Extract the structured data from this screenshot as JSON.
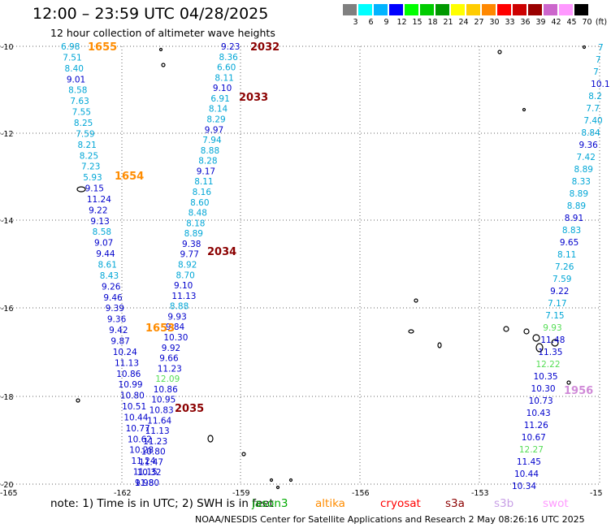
{
  "title": "12:00 – 23:59 UTC 04/28/2025",
  "subtitle": "12 hour collection of altimeter wave heights",
  "legend": {
    "unit": "(ft)",
    "bins": [
      {
        "label": "3",
        "color": "#808080"
      },
      {
        "label": "6",
        "color": "#00ffff"
      },
      {
        "label": "9",
        "color": "#00b4ff"
      },
      {
        "label": "12",
        "color": "#0000ff"
      },
      {
        "label": "15",
        "color": "#00ff00"
      },
      {
        "label": "18",
        "color": "#00cc00"
      },
      {
        "label": "21",
        "color": "#009900"
      },
      {
        "label": "24",
        "color": "#ffff00"
      },
      {
        "label": "27",
        "color": "#ffcc00"
      },
      {
        "label": "30",
        "color": "#ff8800"
      },
      {
        "label": "33",
        "color": "#ff0000"
      },
      {
        "label": "36",
        "color": "#cc0000"
      },
      {
        "label": "39",
        "color": "#990000"
      },
      {
        "label": "42",
        "color": "#cc66cc"
      },
      {
        "label": "45",
        "color": "#ff99ff"
      },
      {
        "label": "70",
        "color": "#000000"
      }
    ]
  },
  "axes": {
    "lat_labels": [
      "-10",
      "-12",
      "-14",
      "-16",
      "-18",
      "-20"
    ],
    "lon_labels": [
      "-165",
      "-162",
      "-159",
      "-156",
      "-153",
      "-15"
    ]
  },
  "track_colors": {
    "cyan": "#00a6d6",
    "blue": "#0000cc",
    "green": "#55dd55"
  },
  "time_labels": [
    {
      "text": "1655",
      "color": "#ff8c00"
    },
    {
      "text": "1654",
      "color": "#ff8c00"
    },
    {
      "text": "1653",
      "color": "#ff8c00"
    },
    {
      "text": "2032",
      "color": "#8b0000"
    },
    {
      "text": "2033",
      "color": "#8b0000"
    },
    {
      "text": "2034",
      "color": "#8b0000"
    },
    {
      "text": "2035",
      "color": "#8b0000"
    },
    {
      "text": "1956",
      "color": "#d08ad8"
    }
  ],
  "tracks": [
    {
      "name": "track-1655",
      "points": [
        {
          "v": "6.98",
          "c": "cyan"
        },
        {
          "v": "7.51",
          "c": "cyan"
        },
        {
          "v": "8.40",
          "c": "cyan"
        },
        {
          "v": "9.01",
          "c": "blue"
        },
        {
          "v": "8.58",
          "c": "cyan"
        },
        {
          "v": "7.63",
          "c": "cyan"
        },
        {
          "v": "7.55",
          "c": "cyan"
        },
        {
          "v": "8.25",
          "c": "cyan"
        },
        {
          "v": "7.59",
          "c": "cyan"
        },
        {
          "v": "8.21",
          "c": "cyan"
        },
        {
          "v": "8.25",
          "c": "cyan"
        },
        {
          "v": "7.23",
          "c": "cyan"
        },
        {
          "v": "5.93",
          "c": "cyan"
        },
        {
          "v": "9.15",
          "c": "blue"
        },
        {
          "v": "11.24",
          "c": "blue"
        },
        {
          "v": "9.22",
          "c": "blue"
        },
        {
          "v": "9.13",
          "c": "blue"
        },
        {
          "v": "8.58",
          "c": "cyan"
        },
        {
          "v": "9.07",
          "c": "blue"
        },
        {
          "v": "9.44",
          "c": "blue"
        },
        {
          "v": "8.61",
          "c": "cyan"
        },
        {
          "v": "8.43",
          "c": "cyan"
        },
        {
          "v": "9.26",
          "c": "blue"
        },
        {
          "v": "9.46",
          "c": "blue"
        },
        {
          "v": "9.39",
          "c": "blue"
        },
        {
          "v": "9.36",
          "c": "blue"
        },
        {
          "v": "9.42",
          "c": "blue"
        },
        {
          "v": "9.87",
          "c": "blue"
        },
        {
          "v": "10.24",
          "c": "blue"
        },
        {
          "v": "11.13",
          "c": "blue"
        },
        {
          "v": "10.86",
          "c": "blue"
        },
        {
          "v": "10.99",
          "c": "blue"
        },
        {
          "v": "10.80",
          "c": "blue"
        },
        {
          "v": "10.51",
          "c": "blue"
        },
        {
          "v": "10.44",
          "c": "blue"
        },
        {
          "v": "10.77",
          "c": "blue"
        },
        {
          "v": "10.62",
          "c": "blue"
        },
        {
          "v": "10.28",
          "c": "blue"
        },
        {
          "v": "11.24",
          "c": "blue"
        },
        {
          "v": "11.15",
          "c": "blue"
        },
        {
          "v": "9.98",
          "c": "blue"
        }
      ]
    },
    {
      "name": "track-2032",
      "points": [
        {
          "v": "9.23",
          "c": "blue"
        },
        {
          "v": "8.36",
          "c": "cyan"
        },
        {
          "v": "6.60",
          "c": "cyan"
        },
        {
          "v": "8.11",
          "c": "cyan"
        },
        {
          "v": "9.10",
          "c": "blue"
        },
        {
          "v": "6.91",
          "c": "cyan"
        },
        {
          "v": "8.14",
          "c": "cyan"
        },
        {
          "v": "8.29",
          "c": "cyan"
        },
        {
          "v": "9.97",
          "c": "blue"
        },
        {
          "v": "7.94",
          "c": "cyan"
        },
        {
          "v": "8.88",
          "c": "cyan"
        },
        {
          "v": "8.28",
          "c": "cyan"
        },
        {
          "v": "9.17",
          "c": "blue"
        },
        {
          "v": "8.11",
          "c": "cyan"
        },
        {
          "v": "8.16",
          "c": "cyan"
        },
        {
          "v": "8.60",
          "c": "cyan"
        },
        {
          "v": "8.48",
          "c": "cyan"
        },
        {
          "v": "8.18",
          "c": "cyan"
        },
        {
          "v": "8.89",
          "c": "cyan"
        },
        {
          "v": "9.38",
          "c": "blue"
        },
        {
          "v": "9.77",
          "c": "blue"
        },
        {
          "v": "8.92",
          "c": "cyan"
        },
        {
          "v": "8.70",
          "c": "cyan"
        },
        {
          "v": "9.10",
          "c": "blue"
        },
        {
          "v": "11.13",
          "c": "blue"
        },
        {
          "v": "8.88",
          "c": "cyan"
        },
        {
          "v": "9.93",
          "c": "blue"
        },
        {
          "v": "9.84",
          "c": "blue"
        },
        {
          "v": "10.30",
          "c": "blue"
        },
        {
          "v": "9.92",
          "c": "blue"
        },
        {
          "v": "9.66",
          "c": "blue"
        },
        {
          "v": "11.23",
          "c": "blue"
        },
        {
          "v": "12.09",
          "c": "green"
        },
        {
          "v": "10.86",
          "c": "blue"
        },
        {
          "v": "10.95",
          "c": "blue"
        },
        {
          "v": "10.83",
          "c": "blue"
        },
        {
          "v": "11.64",
          "c": "blue"
        },
        {
          "v": "11.13",
          "c": "blue"
        },
        {
          "v": "11.23",
          "c": "blue"
        },
        {
          "v": "10.80",
          "c": "blue"
        },
        {
          "v": "11.47",
          "c": "blue"
        },
        {
          "v": "10.32",
          "c": "blue"
        },
        {
          "v": "11.80",
          "c": "blue"
        }
      ]
    },
    {
      "name": "track-1956",
      "points": [
        {
          "v": "7",
          "c": "cyan"
        },
        {
          "v": "7",
          "c": "cyan"
        },
        {
          "v": "7",
          "c": "cyan"
        },
        {
          "v": "10.1",
          "c": "blue"
        },
        {
          "v": "8.2",
          "c": "cyan"
        },
        {
          "v": "7.7",
          "c": "cyan"
        },
        {
          "v": "7.40",
          "c": "cyan"
        },
        {
          "v": "8.84",
          "c": "cyan"
        },
        {
          "v": "9.36",
          "c": "blue"
        },
        {
          "v": "7.42",
          "c": "cyan"
        },
        {
          "v": "8.89",
          "c": "cyan"
        },
        {
          "v": "8.33",
          "c": "cyan"
        },
        {
          "v": "8.89",
          "c": "cyan"
        },
        {
          "v": "8.89",
          "c": "cyan"
        },
        {
          "v": "8.91",
          "c": "blue"
        },
        {
          "v": "8.83",
          "c": "cyan"
        },
        {
          "v": "9.65",
          "c": "blue"
        },
        {
          "v": "8.11",
          "c": "cyan"
        },
        {
          "v": "7.26",
          "c": "cyan"
        },
        {
          "v": "7.59",
          "c": "cyan"
        },
        {
          "v": "9.22",
          "c": "blue"
        },
        {
          "v": "7.17",
          "c": "cyan"
        },
        {
          "v": "7.15",
          "c": "cyan"
        },
        {
          "v": "9.93",
          "c": "green"
        },
        {
          "v": "11.48",
          "c": "blue"
        },
        {
          "v": "11.35",
          "c": "blue"
        },
        {
          "v": "12.22",
          "c": "green"
        },
        {
          "v": "10.35",
          "c": "blue"
        },
        {
          "v": "10.30",
          "c": "blue"
        },
        {
          "v": "10.73",
          "c": "blue"
        },
        {
          "v": "10.43",
          "c": "blue"
        },
        {
          "v": "11.26",
          "c": "blue"
        },
        {
          "v": "10.67",
          "c": "blue"
        },
        {
          "v": "12.27",
          "c": "green"
        },
        {
          "v": "11.45",
          "c": "blue"
        },
        {
          "v": "10.44",
          "c": "blue"
        },
        {
          "v": "10.34",
          "c": "blue"
        }
      ]
    }
  ],
  "footer": {
    "note": "note: 1) Time is in UTC; 2) SWH is in feet",
    "satellites": [
      {
        "name": "jason3",
        "color": "#00aa00"
      },
      {
        "name": "altika",
        "color": "#ff8c00"
      },
      {
        "name": "cryosat",
        "color": "#ff0000"
      },
      {
        "name": "s3a",
        "color": "#8b0000"
      },
      {
        "name": "s3b",
        "color": "#c8a0e6"
      },
      {
        "name": "swot",
        "color": "#ff99ff"
      }
    ],
    "credit": "NOAA/NESDIS Center for Satellite Applications and Research    2 May 08:26:16 UTC 2025"
  }
}
